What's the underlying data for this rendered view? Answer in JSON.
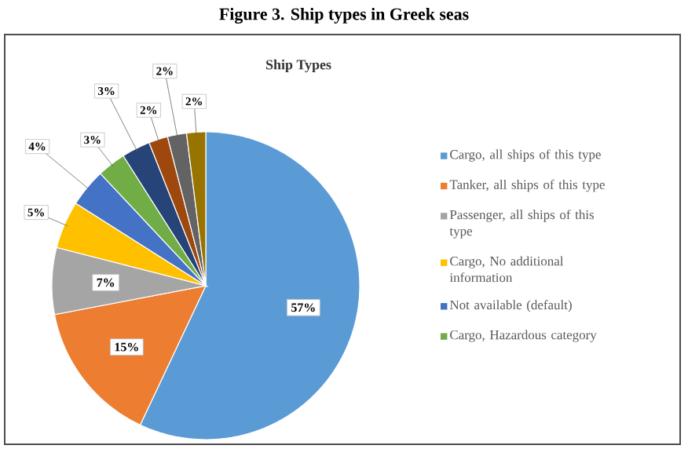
{
  "chart_data": {
    "type": "pie",
    "title": "Ship Types",
    "annotations": [
      "Figure 3. Ship types in Greek seas"
    ],
    "categories": [
      "Cargo, all ships of this type",
      "Tanker, all ships of this type",
      "Passenger, all ships of this type",
      "Cargo, No additional information",
      "Not available (default)",
      "Cargo, Hazardous category",
      null,
      null,
      null,
      null
    ],
    "values": [
      57,
      15,
      7,
      5,
      4,
      3,
      3,
      2,
      2,
      2
    ],
    "colors": [
      "#5b9bd5",
      "#ed7d31",
      "#a5a5a5",
      "#ffc000",
      "#4472c4",
      "#70ad47",
      "#264478",
      "#9e480e",
      "#636363",
      "#997300"
    ],
    "value_labels": [
      "57%",
      "15%",
      "7%",
      "5%",
      "4%",
      "3%",
      "3%",
      "2%",
      "2%",
      "2%"
    ],
    "legend": "right"
  }
}
